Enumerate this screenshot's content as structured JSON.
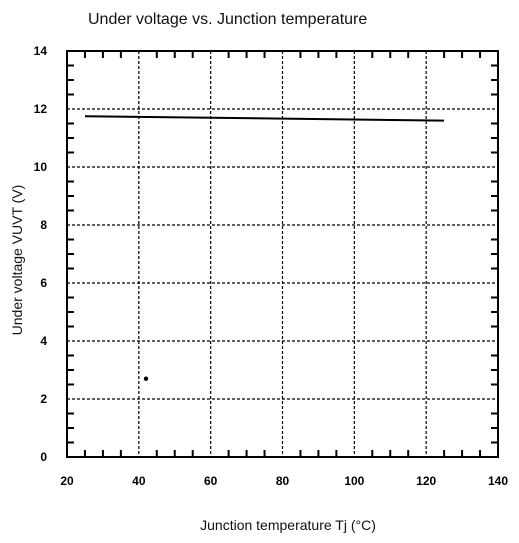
{
  "chart_data": {
    "type": "line",
    "title": "Under voltage vs. Junction temperature",
    "xlabel": "Junction temperature  Tj (°C)",
    "ylabel": "Under voltage  VUVT (V)",
    "xlim": [
      20,
      140
    ],
    "ylim": [
      0,
      14
    ],
    "xticks": [
      "20",
      "40",
      "60",
      "80",
      "100",
      "120",
      "140"
    ],
    "yticks": [
      "0",
      "2",
      "4",
      "6",
      "8",
      "10",
      "12",
      "14"
    ],
    "grid": true,
    "series": [
      {
        "x": [
          25,
          125
        ],
        "y": [
          11.75,
          11.6
        ]
      }
    ],
    "annotations": [
      {
        "type": "dot",
        "x": 42,
        "y": 2.7
      }
    ]
  }
}
